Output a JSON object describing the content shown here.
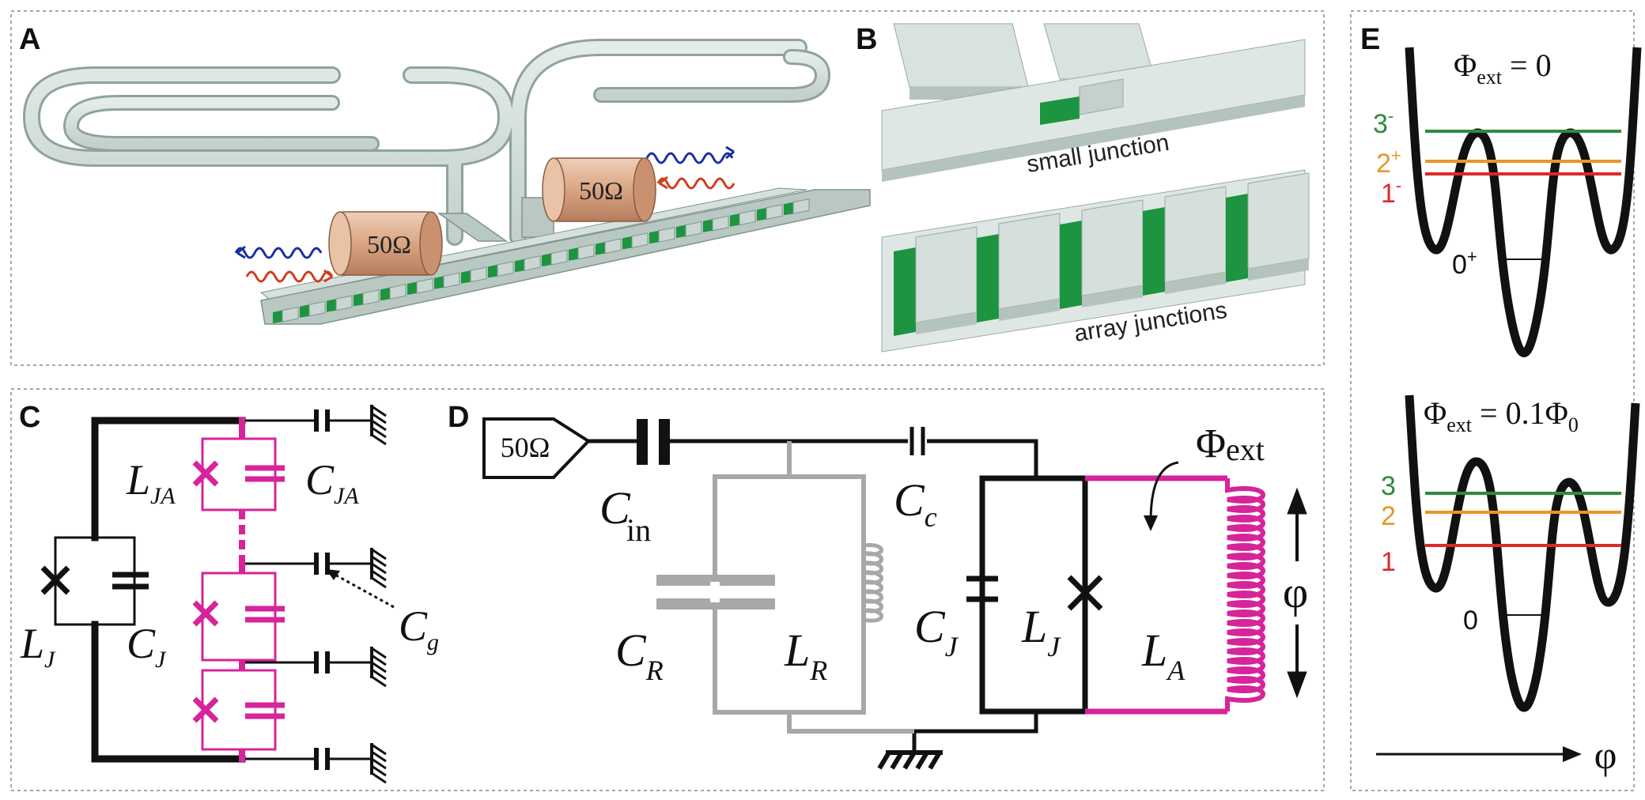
{
  "panels": {
    "a": {
      "letter": "A",
      "port_left": "50Ω",
      "port_right": "50Ω"
    },
    "b": {
      "letter": "B",
      "label_small": "small junction",
      "label_array": "array junctions"
    },
    "c": {
      "letter": "C",
      "L_JA": {
        "base": "L",
        "sub": "JA"
      },
      "C_JA": {
        "base": "C",
        "sub": "JA"
      },
      "L_J": {
        "base": "L",
        "sub": "J"
      },
      "C_J": {
        "base": "C",
        "sub": "J"
      },
      "C_g": {
        "base": "C",
        "sub": "g"
      }
    },
    "d": {
      "letter": "D",
      "port": "50Ω",
      "C_in": {
        "base": "C",
        "sub": "in"
      },
      "C_c": {
        "base": "C",
        "sub": "c"
      },
      "C_R": {
        "base": "C",
        "sub": "R"
      },
      "L_R": {
        "base": "L",
        "sub": "R"
      },
      "C_J": {
        "base": "C",
        "sub": "J"
      },
      "L_J": {
        "base": "L",
        "sub": "J"
      },
      "L_A": {
        "base": "L",
        "sub": "A"
      },
      "Phi_ext": {
        "base": "Φ",
        "sub": "ext"
      },
      "phi": "φ"
    },
    "e": {
      "letter": "E",
      "top_eq": {
        "base": "Φ",
        "sub": "ext",
        "rest": " = 0"
      },
      "top_levels": [
        {
          "num": "3",
          "sup": "-"
        },
        {
          "num": "2",
          "sup": "+"
        },
        {
          "num": "1",
          "sup": "-"
        }
      ],
      "top_ground": {
        "num": "0",
        "sup": "+"
      },
      "bottom_eq": {
        "base": "Φ",
        "sub": "ext",
        "rest": " = 0.1Φ",
        "sub2": "0"
      },
      "bottom_levels": [
        "3",
        "2",
        "1"
      ],
      "bottom_ground": "0",
      "axis": "φ"
    }
  },
  "colors": {
    "magenta": "#d6249a",
    "gray": "#a8a8a8",
    "green": "#2e8b3c",
    "orange": "#e8962a",
    "red": "#e02828",
    "black": "#111111",
    "wave_blue": "#1c2fa0",
    "wave_red": "#cf3d1a",
    "copper": "#e0b294",
    "metal": "#cfdad6",
    "junction_green": "#1c9440"
  }
}
